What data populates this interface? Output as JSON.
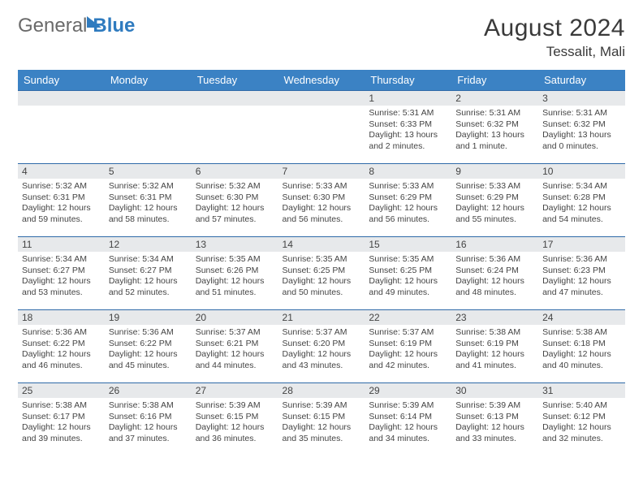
{
  "logo": {
    "general": "General",
    "blue": "Blue"
  },
  "title": "August 2024",
  "location": "Tessalit, Mali",
  "dayNames": [
    "Sunday",
    "Monday",
    "Tuesday",
    "Wednesday",
    "Thursday",
    "Friday",
    "Saturday"
  ],
  "header_bg": "#3b82c4",
  "border_color": "#2f6aa8",
  "daynum_bg": "#e7e9eb",
  "weeks": [
    [
      null,
      null,
      null,
      null,
      {
        "n": "1",
        "sr": "5:31 AM",
        "ss": "6:33 PM",
        "dl": "13 hours and 2 minutes."
      },
      {
        "n": "2",
        "sr": "5:31 AM",
        "ss": "6:32 PM",
        "dl": "13 hours and 1 minute."
      },
      {
        "n": "3",
        "sr": "5:31 AM",
        "ss": "6:32 PM",
        "dl": "13 hours and 0 minutes."
      }
    ],
    [
      {
        "n": "4",
        "sr": "5:32 AM",
        "ss": "6:31 PM",
        "dl": "12 hours and 59 minutes."
      },
      {
        "n": "5",
        "sr": "5:32 AM",
        "ss": "6:31 PM",
        "dl": "12 hours and 58 minutes."
      },
      {
        "n": "6",
        "sr": "5:32 AM",
        "ss": "6:30 PM",
        "dl": "12 hours and 57 minutes."
      },
      {
        "n": "7",
        "sr": "5:33 AM",
        "ss": "6:30 PM",
        "dl": "12 hours and 56 minutes."
      },
      {
        "n": "8",
        "sr": "5:33 AM",
        "ss": "6:29 PM",
        "dl": "12 hours and 56 minutes."
      },
      {
        "n": "9",
        "sr": "5:33 AM",
        "ss": "6:29 PM",
        "dl": "12 hours and 55 minutes."
      },
      {
        "n": "10",
        "sr": "5:34 AM",
        "ss": "6:28 PM",
        "dl": "12 hours and 54 minutes."
      }
    ],
    [
      {
        "n": "11",
        "sr": "5:34 AM",
        "ss": "6:27 PM",
        "dl": "12 hours and 53 minutes."
      },
      {
        "n": "12",
        "sr": "5:34 AM",
        "ss": "6:27 PM",
        "dl": "12 hours and 52 minutes."
      },
      {
        "n": "13",
        "sr": "5:35 AM",
        "ss": "6:26 PM",
        "dl": "12 hours and 51 minutes."
      },
      {
        "n": "14",
        "sr": "5:35 AM",
        "ss": "6:25 PM",
        "dl": "12 hours and 50 minutes."
      },
      {
        "n": "15",
        "sr": "5:35 AM",
        "ss": "6:25 PM",
        "dl": "12 hours and 49 minutes."
      },
      {
        "n": "16",
        "sr": "5:36 AM",
        "ss": "6:24 PM",
        "dl": "12 hours and 48 minutes."
      },
      {
        "n": "17",
        "sr": "5:36 AM",
        "ss": "6:23 PM",
        "dl": "12 hours and 47 minutes."
      }
    ],
    [
      {
        "n": "18",
        "sr": "5:36 AM",
        "ss": "6:22 PM",
        "dl": "12 hours and 46 minutes."
      },
      {
        "n": "19",
        "sr": "5:36 AM",
        "ss": "6:22 PM",
        "dl": "12 hours and 45 minutes."
      },
      {
        "n": "20",
        "sr": "5:37 AM",
        "ss": "6:21 PM",
        "dl": "12 hours and 44 minutes."
      },
      {
        "n": "21",
        "sr": "5:37 AM",
        "ss": "6:20 PM",
        "dl": "12 hours and 43 minutes."
      },
      {
        "n": "22",
        "sr": "5:37 AM",
        "ss": "6:19 PM",
        "dl": "12 hours and 42 minutes."
      },
      {
        "n": "23",
        "sr": "5:38 AM",
        "ss": "6:19 PM",
        "dl": "12 hours and 41 minutes."
      },
      {
        "n": "24",
        "sr": "5:38 AM",
        "ss": "6:18 PM",
        "dl": "12 hours and 40 minutes."
      }
    ],
    [
      {
        "n": "25",
        "sr": "5:38 AM",
        "ss": "6:17 PM",
        "dl": "12 hours and 39 minutes."
      },
      {
        "n": "26",
        "sr": "5:38 AM",
        "ss": "6:16 PM",
        "dl": "12 hours and 37 minutes."
      },
      {
        "n": "27",
        "sr": "5:39 AM",
        "ss": "6:15 PM",
        "dl": "12 hours and 36 minutes."
      },
      {
        "n": "28",
        "sr": "5:39 AM",
        "ss": "6:15 PM",
        "dl": "12 hours and 35 minutes."
      },
      {
        "n": "29",
        "sr": "5:39 AM",
        "ss": "6:14 PM",
        "dl": "12 hours and 34 minutes."
      },
      {
        "n": "30",
        "sr": "5:39 AM",
        "ss": "6:13 PM",
        "dl": "12 hours and 33 minutes."
      },
      {
        "n": "31",
        "sr": "5:40 AM",
        "ss": "6:12 PM",
        "dl": "12 hours and 32 minutes."
      }
    ]
  ],
  "labels": {
    "sunrise": "Sunrise: ",
    "sunset": "Sunset: ",
    "daylight": "Daylight: "
  }
}
